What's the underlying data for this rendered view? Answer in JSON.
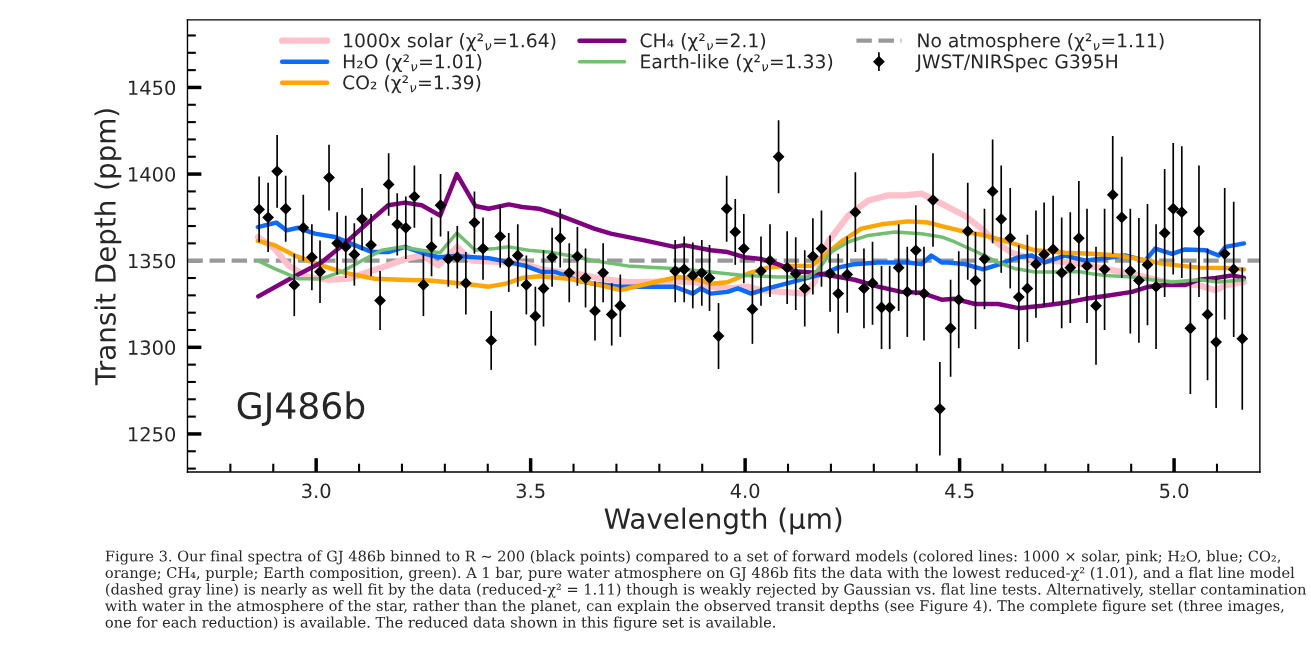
{
  "chart_data": {
    "type": "line",
    "xlabel": "Wavelength (μm)",
    "ylabel": "Transit Depth (ppm)",
    "xlim": [
      2.7,
      5.2
    ],
    "ylim": [
      1228,
      1489
    ],
    "xticks": [
      {
        "value": 2.8,
        "label": null
      },
      {
        "value": 2.9,
        "label": null
      },
      {
        "value": 3.0,
        "label": "3.0"
      },
      {
        "value": 3.1,
        "label": null
      },
      {
        "value": 3.2,
        "label": null
      },
      {
        "value": 3.3,
        "label": null
      },
      {
        "value": 3.4,
        "label": null
      },
      3.5,
      {
        "value": 3.6,
        "label": null
      },
      {
        "value": 3.7,
        "label": null
      },
      {
        "value": 3.8,
        "label": null
      },
      {
        "value": 3.9,
        "label": null
      },
      {
        "value": 4.0,
        "label": "4.0"
      },
      {
        "value": 4.1,
        "label": null
      },
      {
        "value": 4.2,
        "label": null
      },
      {
        "value": 4.3,
        "label": null
      },
      {
        "value": 4.4,
        "label": null
      },
      4.5,
      {
        "value": 4.6,
        "label": null
      },
      {
        "value": 4.7,
        "label": null
      },
      {
        "value": 4.8,
        "label": null
      },
      {
        "value": 4.9,
        "label": null
      },
      {
        "value": 5.0,
        "label": "5.0"
      },
      {
        "value": 5.1,
        "label": null
      }
    ],
    "yticks": [
      {
        "value": 1230,
        "label": null
      },
      {
        "value": 1240,
        "label": null
      },
      1250,
      {
        "value": 1260,
        "label": null
      },
      {
        "value": 1270,
        "label": null
      },
      {
        "value": 1280,
        "label": null
      },
      {
        "value": 1290,
        "label": null
      },
      1300,
      {
        "value": 1310,
        "label": null
      },
      {
        "value": 1320,
        "label": null
      },
      {
        "value": 1330,
        "label": null
      },
      {
        "value": 1340,
        "label": null
      },
      1350,
      {
        "value": 1360,
        "label": null
      },
      {
        "value": 1370,
        "label": null
      },
      {
        "value": 1380,
        "label": null
      },
      {
        "value": 1390,
        "label": null
      },
      1400,
      {
        "value": 1410,
        "label": null
      },
      {
        "value": 1420,
        "label": null
      },
      {
        "value": 1430,
        "label": null
      },
      {
        "value": 1440,
        "label": null
      },
      1450,
      {
        "value": 1460,
        "label": null
      },
      {
        "value": 1470,
        "label": null
      },
      {
        "value": 1480,
        "label": null
      }
    ],
    "grid": false,
    "legend": "top",
    "annotations": [
      "GJ486b",
      "Figure 3. Our final spectra of GJ 486b binned to R ∼ 200 (black points) compared to a set of forward models (colored lines: 1000 × solar, pink; H₂O, blue; CO₂, orange; CH₄, purple; Earth composition, green). A 1 bar, pure water atmosphere on GJ 486b fits the data with the lowest reduced-χ² (1.01), and a flat line model (dashed gray line) is nearly as well fit by the data (reduced-χ² = 1.11) though is weakly rejected by Gaussian vs. flat line tests. Alternatively, stellar contamination with water in the atmosphere of the star, rather than the planet, can explain the observed transit depths (see Figure 4). The complete figure set (three images, one for each reduction) is available. The reduced data shown in this figure set is available."
    ],
    "series": [
      {
        "name": "1000x solar (χ²$_{ν}$=1.64)",
        "color": "#ffc0cb",
        "x": [
          2.864,
          2.903,
          2.935,
          2.981,
          3.028,
          3.075,
          3.121,
          3.168,
          3.207,
          3.246,
          3.285,
          3.328,
          3.363,
          3.402,
          3.441,
          3.488,
          3.526,
          3.589,
          3.609,
          3.664,
          3.726,
          3.843,
          3.882,
          3.92,
          3.959,
          4.006,
          4.037,
          4.084,
          4.139,
          4.162,
          4.193,
          4.24,
          4.287,
          4.333,
          4.372,
          4.411,
          4.435,
          4.473,
          4.512,
          4.551,
          4.59,
          4.621,
          4.668,
          4.731,
          4.785,
          4.824,
          4.871,
          4.917,
          4.98,
          5.058,
          5.097,
          5.12,
          5.163
        ],
        "values": [
          1363.7,
          1357,
          1347.3,
          1340.6,
          1339,
          1339.6,
          1343.5,
          1347.3,
          1351,
          1353,
          1347.3,
          1358,
          1350,
          1349.6,
          1349,
          1348,
          1345,
          1342.5,
          1342.5,
          1339.6,
          1337.7,
          1338,
          1337.7,
          1334.8,
          1334,
          1335,
          1333,
          1332,
          1331,
          1337.7,
          1360.8,
          1376,
          1384.8,
          1387.7,
          1387.7,
          1388.7,
          1385.8,
          1381,
          1376,
          1368.5,
          1359.8,
          1354.6,
          1351,
          1349.6,
          1348,
          1346,
          1343.8,
          1341.5,
          1337.7,
          1335.8,
          1333,
          1335.8,
          1337.7
        ]
      },
      {
        "name": "H₂O (χ²$_{ν}$=1.01)",
        "color": "#0a6cff",
        "x": [
          2.864,
          2.907,
          2.931,
          2.958,
          2.997,
          3.044,
          3.09,
          3.129,
          3.168,
          3.207,
          3.246,
          3.285,
          3.324,
          3.402,
          3.441,
          3.488,
          3.526,
          3.558,
          3.589,
          3.609,
          3.648,
          3.71,
          3.835,
          3.878,
          3.897,
          3.92,
          3.959,
          3.983,
          4.014,
          4.053,
          4.1,
          4.139,
          4.185,
          4.216,
          4.255,
          4.31,
          4.349,
          4.38,
          4.411,
          4.434,
          4.458,
          4.473,
          4.512,
          4.555,
          4.59,
          4.637,
          4.668,
          4.699,
          4.746,
          4.793,
          4.824,
          4.886,
          4.933,
          4.956,
          4.995,
          5.026,
          5.073,
          5.104,
          5.12,
          5.163
        ],
        "values": [
          1369.4,
          1372,
          1367.5,
          1369,
          1365.6,
          1363.7,
          1359,
          1355,
          1355,
          1358,
          1354.6,
          1352,
          1352.7,
          1351.5,
          1349.6,
          1347,
          1343.5,
          1343.5,
          1340.6,
          1338.6,
          1336.7,
          1335,
          1335,
          1331,
          1334,
          1331,
          1332,
          1334,
          1331,
          1334,
          1337,
          1339.6,
          1342.5,
          1346,
          1348,
          1349,
          1349,
          1349,
          1348,
          1353,
          1349,
          1349,
          1348,
          1345,
          1347.7,
          1352,
          1353,
          1349,
          1353,
          1350,
          1351,
          1353,
          1350,
          1357,
          1354,
          1356.5,
          1356,
          1353,
          1358,
          1360
        ]
      },
      {
        "name": "CO₂ (χ²$_{ν}$=1.39)",
        "color": "#ffa500",
        "x": [
          2.864,
          2.903,
          2.95,
          3.012,
          3.067,
          3.137,
          3.199,
          3.262,
          3.347,
          3.402,
          3.441,
          3.48,
          3.519,
          3.589,
          3.648,
          3.71,
          3.772,
          3.843,
          3.882,
          3.92,
          3.959,
          4.006,
          4.053,
          4.1,
          4.154,
          4.185,
          4.224,
          4.271,
          4.318,
          4.38,
          4.427,
          4.458,
          4.497,
          4.551,
          4.614,
          4.676,
          4.746,
          4.808,
          4.871,
          4.917,
          4.98,
          5.058,
          5.12,
          5.163
        ],
        "values": [
          1361.4,
          1359,
          1353,
          1347.3,
          1343,
          1339.6,
          1339,
          1338.6,
          1336.7,
          1335,
          1336.7,
          1340,
          1341,
          1339.6,
          1336.7,
          1333,
          1336.7,
          1340.6,
          1339.6,
          1336.7,
          1337.6,
          1342.5,
          1346,
          1347,
          1347,
          1353,
          1361,
          1368.5,
          1371,
          1372.7,
          1372,
          1370,
          1367.6,
          1365,
          1360.8,
          1356,
          1354.6,
          1354,
          1353,
          1351,
          1348,
          1346,
          1345.8,
          1345
        ]
      },
      {
        "name": "CH₄ (χ²$_{ν}$=2.1)",
        "color": "#800080",
        "x": [
          2.865,
          2.935,
          3.012,
          3.067,
          3.121,
          3.168,
          3.207,
          3.246,
          3.289,
          3.328,
          3.371,
          3.402,
          3.449,
          3.48,
          3.519,
          3.558,
          3.601,
          3.648,
          3.687,
          3.765,
          3.835,
          3.858,
          3.92,
          3.959,
          3.998,
          4.037,
          4.076,
          4.115,
          4.162,
          4.209,
          4.255,
          4.31,
          4.364,
          4.411,
          4.458,
          4.489,
          4.536,
          4.59,
          4.637,
          4.692,
          4.746,
          4.793,
          4.84,
          4.902,
          4.941,
          4.98,
          5.026,
          5.058,
          5.097,
          5.136,
          5.163
        ],
        "values": [
          1329.4,
          1339,
          1349,
          1360,
          1372,
          1382,
          1383.5,
          1382,
          1376,
          1400,
          1381.6,
          1380,
          1382.5,
          1381,
          1380,
          1377,
          1373,
          1368.5,
          1365.6,
          1361.7,
          1358,
          1359,
          1356,
          1355,
          1352,
          1351,
          1348,
          1344,
          1343,
          1341,
          1339,
          1335,
          1332,
          1331.5,
          1327.5,
          1328,
          1325,
          1325,
          1322.6,
          1324,
          1325.7,
          1328,
          1329.6,
          1332,
          1335,
          1336,
          1336,
          1339,
          1340,
          1341.5,
          1340
        ]
      },
      {
        "name": "Earth-like (χ²$_{ν}$=1.33)",
        "color": "#70c070",
        "x": [
          2.864,
          2.903,
          2.958,
          3.012,
          3.059,
          3.106,
          3.153,
          3.199,
          3.246,
          3.289,
          3.328,
          3.371,
          3.418,
          3.449,
          3.495,
          3.542,
          3.589,
          3.648,
          3.726,
          3.843,
          3.92,
          3.998,
          4.076,
          4.146,
          4.169,
          4.201,
          4.24,
          4.287,
          4.349,
          4.411,
          4.458,
          4.489,
          4.544,
          4.59,
          4.629,
          4.676,
          4.73,
          4.777,
          4.808,
          4.84,
          4.902,
          4.949,
          4.995,
          5.058,
          5.104,
          5.163
        ],
        "values": [
          1350,
          1345.4,
          1339.6,
          1339.6,
          1343.5,
          1350,
          1356,
          1358,
          1356,
          1354.6,
          1366,
          1356,
          1357,
          1358,
          1356,
          1355,
          1353,
          1350,
          1347,
          1345.4,
          1343.5,
          1341.5,
          1340.6,
          1340.6,
          1344.4,
          1355,
          1360.8,
          1364.6,
          1366.6,
          1365.6,
          1363.7,
          1360.8,
          1354.6,
          1349,
          1345.4,
          1343.5,
          1343.5,
          1343.8,
          1342.5,
          1341.5,
          1340.6,
          1339,
          1337.7,
          1339,
          1337.7,
          1339
        ]
      },
      {
        "name": "No atmosphere (χ²$_{ν}$=1.11)",
        "color": "#999999",
        "line_style": "dashed",
        "x": [
          2.7,
          5.2
        ],
        "values": [
          1350,
          1350
        ]
      },
      {
        "name": "JWST/NIRSpec G395H",
        "type": "scatter",
        "color": "#000000",
        "marker": "diamond",
        "x": [
          2.867,
          2.888,
          2.909,
          2.929,
          2.949,
          2.97,
          2.99,
          3.009,
          3.03,
          3.049,
          3.069,
          3.089,
          3.107,
          3.128,
          3.149,
          3.169,
          3.189,
          3.209,
          3.229,
          3.25,
          3.269,
          3.29,
          3.308,
          3.329,
          3.349,
          3.369,
          3.389,
          3.408,
          3.429,
          3.449,
          3.47,
          3.49,
          3.511,
          3.53,
          3.55,
          3.569,
          3.59,
          3.609,
          3.628,
          3.65,
          3.669,
          3.689,
          3.709,
          3.837,
          3.858,
          3.878,
          3.899,
          3.917,
          3.938,
          3.957,
          3.977,
          3.997,
          4.017,
          4.037,
          4.058,
          4.078,
          4.098,
          4.118,
          4.139,
          4.158,
          4.178,
          4.198,
          4.217,
          4.238,
          4.257,
          4.277,
          4.297,
          4.318,
          4.337,
          4.358,
          4.378,
          4.398,
          4.417,
          4.438,
          4.454,
          4.479,
          4.498,
          4.519,
          4.537,
          4.558,
          4.577,
          4.597,
          4.618,
          4.638,
          4.658,
          4.678,
          4.697,
          4.718,
          4.738,
          4.758,
          4.778,
          4.797,
          4.818,
          4.838,
          4.857,
          4.878,
          4.898,
          4.918,
          4.938,
          4.958,
          4.978,
          4.998,
          5.018,
          5.038,
          5.058,
          5.078,
          5.098,
          5.118,
          5.139,
          5.159
        ],
        "values": [
          1379.6,
          1375,
          1401.6,
          1380,
          1336,
          1369,
          1352,
          1343.6,
          1398,
          1360,
          1358,
          1353.6,
          1374,
          1359,
          1327,
          1394,
          1371,
          1369,
          1387,
          1336,
          1358,
          1382,
          1351,
          1352,
          1337,
          1372,
          1357,
          1304,
          1364,
          1349,
          1353,
          1336,
          1318,
          1334,
          1352,
          1363,
          1343,
          1352.5,
          1340,
          1321,
          1343,
          1319,
          1324,
          1344,
          1345,
          1341.5,
          1343,
          1340,
          1306.5,
          1380,
          1366.6,
          1357,
          1322,
          1344,
          1350,
          1410,
          1346,
          1342.5,
          1334,
          1352.5,
          1357,
          1342.5,
          1331,
          1342,
          1378,
          1334,
          1337,
          1323,
          1323,
          1346,
          1332,
          1356,
          1331,
          1385,
          1264.5,
          1311,
          1327.5,
          1367,
          1338.5,
          1351,
          1390,
          1374,
          1363,
          1329,
          1334,
          1348,
          1353.6,
          1356.5,
          1343,
          1346,
          1363,
          1347,
          1324,
          1345,
          1388,
          1375,
          1344,
          1338.6,
          1347.7,
          1335,
          1366,
          1380,
          1378,
          1311,
          1367,
          1319,
          1303,
          1354,
          1345,
          1305
        ],
        "errors": [
          19,
          20,
          21,
          19,
          18,
          19,
          19,
          18,
          19,
          18,
          18,
          18,
          18,
          18,
          17,
          18,
          18,
          18,
          18,
          18,
          17,
          18,
          16,
          18,
          18,
          18,
          18,
          17,
          18,
          17,
          18,
          17,
          17,
          22,
          17,
          17,
          17,
          17,
          17,
          17,
          17,
          18,
          18,
          18,
          19,
          19,
          19,
          19,
          19,
          19,
          19,
          20,
          20,
          20,
          21,
          21,
          21,
          21,
          22,
          22,
          22,
          22,
          23,
          22,
          23,
          23,
          24,
          24,
          24,
          25,
          26,
          26,
          27,
          27,
          27,
          28,
          28,
          28,
          28,
          29,
          30,
          31,
          29,
          30,
          31,
          31,
          30,
          31,
          32,
          32,
          33,
          33,
          34,
          35,
          34,
          35,
          36,
          36,
          35,
          36,
          37,
          38,
          38,
          38,
          38,
          38,
          38,
          38,
          39,
          41
        ]
      }
    ]
  }
}
